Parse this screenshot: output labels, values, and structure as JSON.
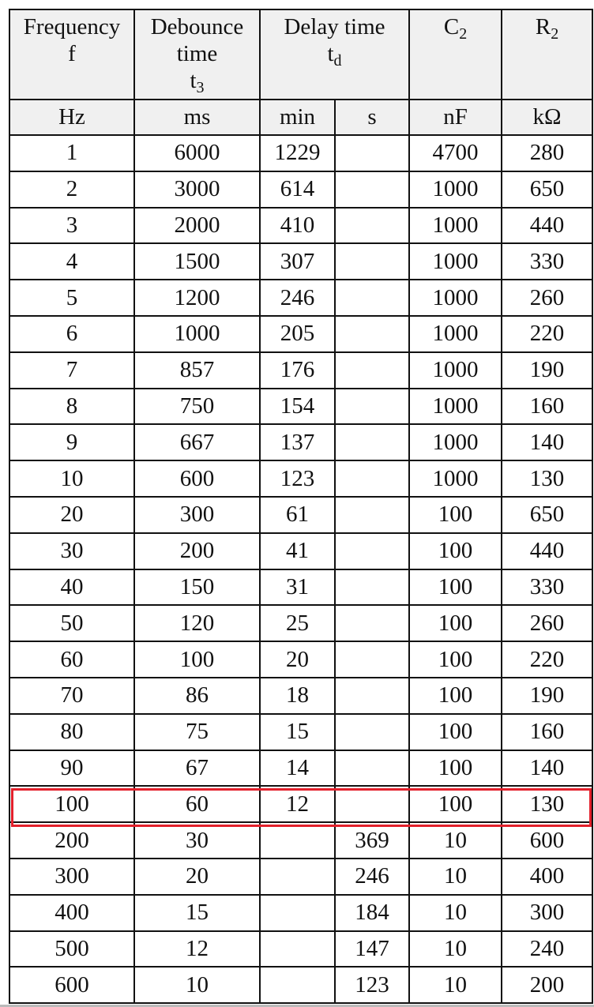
{
  "header": {
    "frequency": {
      "line1": "Frequency",
      "line2": "f"
    },
    "debounce": {
      "line1": "Debounce",
      "line2": "time",
      "symbol": "t",
      "sub": "3"
    },
    "delay": {
      "line1": "Delay time",
      "symbol": "t",
      "sub": "d"
    },
    "c2": {
      "symbol": "C",
      "sub": "2"
    },
    "r2": {
      "symbol": "R",
      "sub": "2"
    }
  },
  "units": [
    "Hz",
    "ms",
    "min",
    "s",
    "nF",
    "kΩ"
  ],
  "rows": [
    [
      "1",
      "6000",
      "1229",
      "",
      "4700",
      "280"
    ],
    [
      "2",
      "3000",
      "614",
      "",
      "1000",
      "650"
    ],
    [
      "3",
      "2000",
      "410",
      "",
      "1000",
      "440"
    ],
    [
      "4",
      "1500",
      "307",
      "",
      "1000",
      "330"
    ],
    [
      "5",
      "1200",
      "246",
      "",
      "1000",
      "260"
    ],
    [
      "6",
      "1000",
      "205",
      "",
      "1000",
      "220"
    ],
    [
      "7",
      "857",
      "176",
      "",
      "1000",
      "190"
    ],
    [
      "8",
      "750",
      "154",
      "",
      "1000",
      "160"
    ],
    [
      "9",
      "667",
      "137",
      "",
      "1000",
      "140"
    ],
    [
      "10",
      "600",
      "123",
      "",
      "1000",
      "130"
    ],
    [
      "20",
      "300",
      "61",
      "",
      "100",
      "650"
    ],
    [
      "30",
      "200",
      "41",
      "",
      "100",
      "440"
    ],
    [
      "40",
      "150",
      "31",
      "",
      "100",
      "330"
    ],
    [
      "50",
      "120",
      "25",
      "",
      "100",
      "260"
    ],
    [
      "60",
      "100",
      "20",
      "",
      "100",
      "220"
    ],
    [
      "70",
      "86",
      "18",
      "",
      "100",
      "190"
    ],
    [
      "80",
      "75",
      "15",
      "",
      "100",
      "160"
    ],
    [
      "90",
      "67",
      "14",
      "",
      "100",
      "140"
    ],
    [
      "100",
      "60",
      "12",
      "",
      "100",
      "130"
    ],
    [
      "200",
      "30",
      "",
      "369",
      "10",
      "600"
    ],
    [
      "300",
      "20",
      "",
      "246",
      "10",
      "400"
    ],
    [
      "400",
      "15",
      "",
      "184",
      "10",
      "300"
    ],
    [
      "500",
      "12",
      "",
      "147",
      "10",
      "240"
    ],
    [
      "600",
      "10",
      "",
      "123",
      "10",
      "200"
    ]
  ],
  "highlighted_row": "100",
  "colors": {
    "highlight": "#e3202b",
    "header_bg": "#f0f0f0"
  }
}
